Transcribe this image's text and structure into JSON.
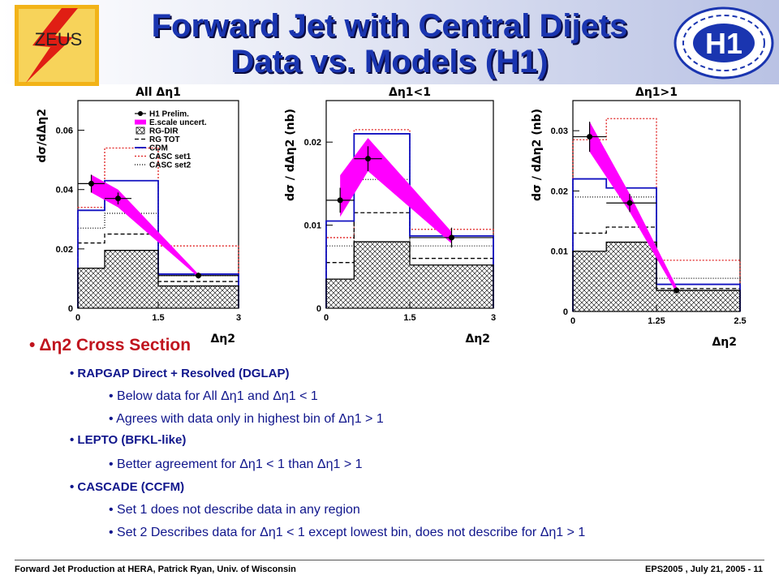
{
  "slide": {
    "title_line1": "Forward Jet with Central Dijets",
    "title_line2": "Data vs. Models (H1)",
    "logo_left": "ZEUS",
    "logo_right": "H1",
    "colors": {
      "title": "#1a35b0",
      "bullet_heading": "#c0141e",
      "bullet_text": "#10168c",
      "data_band": "#ff00ff",
      "model_blue": "#1010c0",
      "model_red": "#e02020"
    }
  },
  "chart_data": [
    {
      "type": "bar",
      "title": "All Δη1",
      "ylabel": "dσ/dΔη2",
      "xlabel": "Δη2",
      "xlim": [
        0,
        3
      ],
      "ylim": [
        0,
        0.07
      ],
      "xticks": [
        "0",
        "1.5",
        "3"
      ],
      "yticks": [
        "0",
        "0.02",
        "0.04",
        "0.06"
      ],
      "legend": [
        "H1 Prelim.",
        "E.scale uncert.",
        "RG-DIR",
        "RG TOT",
        "CDM",
        "CASC set1",
        "CASC set2"
      ],
      "legend_position": "top-right",
      "bins": [
        [
          0,
          0.5
        ],
        [
          0.5,
          1.0
        ],
        [
          1.0,
          1.5
        ],
        [
          1.5,
          3.0
        ]
      ],
      "series": [
        {
          "name": "H1 Prelim.",
          "x": [
            0.25,
            0.75,
            2.25
          ],
          "y": [
            0.042,
            0.037,
            0.011
          ],
          "err": [
            0.003,
            0.002,
            0.001
          ]
        },
        {
          "name": "E.scale uncert.",
          "x": [
            0.25,
            0.75,
            2.25
          ],
          "low": [
            0.039,
            0.034,
            0.0105
          ],
          "high": [
            0.045,
            0.04,
            0.0115
          ]
        },
        {
          "name": "RG-DIR",
          "values": [
            0.0135,
            0.0195,
            0.0195,
            0.0075
          ]
        },
        {
          "name": "RG TOT",
          "values": [
            0.022,
            0.025,
            0.025,
            0.009
          ]
        },
        {
          "name": "CDM",
          "values": [
            0.033,
            0.043,
            0.043,
            0.0115
          ]
        },
        {
          "name": "CASC set1",
          "values": [
            0.034,
            0.054,
            0.054,
            0.021
          ]
        },
        {
          "name": "CASC set2",
          "values": [
            0.027,
            0.032,
            0.032,
            0.011
          ]
        }
      ]
    },
    {
      "type": "bar",
      "title": "Δη1<1",
      "ylabel": "dσ / dΔη2 (nb)",
      "xlabel": "Δη2",
      "xlim": [
        0,
        3
      ],
      "ylim": [
        0,
        0.025
      ],
      "xticks": [
        "0",
        "1.5",
        "3"
      ],
      "yticks": [
        "0",
        "0.01",
        "0.02"
      ],
      "bins": [
        [
          0,
          0.5
        ],
        [
          0.5,
          1.0
        ],
        [
          1.0,
          1.5
        ],
        [
          1.5,
          3.0
        ]
      ],
      "series": [
        {
          "name": "H1 Prelim.",
          "x": [
            0.25,
            0.75,
            2.25
          ],
          "y": [
            0.013,
            0.018,
            0.0085
          ],
          "err": [
            0.0015,
            0.0015,
            0.0012
          ]
        },
        {
          "name": "E.scale uncert.",
          "x": [
            0.25,
            0.75,
            2.25
          ],
          "low": [
            0.011,
            0.0165,
            0.0078
          ],
          "high": [
            0.016,
            0.0205,
            0.0092
          ]
        },
        {
          "name": "RG-DIR",
          "values": [
            0.0035,
            0.008,
            0.008,
            0.0052
          ]
        },
        {
          "name": "RG TOT",
          "values": [
            0.0055,
            0.0115,
            0.0115,
            0.006
          ]
        },
        {
          "name": "CDM",
          "values": [
            0.0105,
            0.021,
            0.021,
            0.0087
          ]
        },
        {
          "name": "CASC set1",
          "values": [
            0.0085,
            0.0215,
            0.0215,
            0.0095
          ]
        },
        {
          "name": "CASC set2",
          "values": [
            0.0075,
            0.0155,
            0.0155,
            0.0075
          ]
        }
      ]
    },
    {
      "type": "bar",
      "title": "Δη1>1",
      "ylabel": "dσ / dΔη2 (nb)",
      "xlabel": "Δη2",
      "xlim": [
        0,
        2.5
      ],
      "ylim": [
        0,
        0.035
      ],
      "xticks": [
        "0",
        "1.25",
        "2.5"
      ],
      "yticks": [
        "0",
        "0.01",
        "0.02",
        "0.03"
      ],
      "bins": [
        [
          0,
          0.5
        ],
        [
          0.5,
          1.25
        ],
        [
          1.25,
          2.5
        ]
      ],
      "series": [
        {
          "name": "H1 Prelim.",
          "x": [
            0.25,
            0.85,
            1.55
          ],
          "y": [
            0.029,
            0.018,
            0.0035
          ],
          "err": [
            0.0025,
            0.0015,
            0.0005
          ]
        },
        {
          "name": "E.scale uncert.",
          "x": [
            0.25,
            0.85,
            1.55
          ],
          "low": [
            0.0265,
            0.0165,
            0.0031
          ],
          "high": [
            0.0315,
            0.0195,
            0.0041
          ]
        },
        {
          "name": "RG-DIR",
          "values": [
            0.01,
            0.0115,
            0.0035
          ]
        },
        {
          "name": "RG TOT",
          "values": [
            0.013,
            0.014,
            0.0038
          ]
        },
        {
          "name": "CDM",
          "values": [
            0.022,
            0.0205,
            0.0045
          ]
        },
        {
          "name": "CASC set1",
          "values": [
            0.0285,
            0.032,
            0.0085
          ]
        },
        {
          "name": "CASC set2",
          "values": [
            0.019,
            0.019,
            0.0055
          ]
        }
      ]
    }
  ],
  "bullets": {
    "heading": "Δη2 Cross Section",
    "items": [
      {
        "level": 1,
        "text": "RAPGAP Direct + Resolved (DGLAP)"
      },
      {
        "level": 2,
        "text": "Below data for All Δη1 and Δη1 < 1"
      },
      {
        "level": 2,
        "text": "Agrees with data only in highest bin of Δη1 > 1"
      },
      {
        "level": 1,
        "text": " LEPTO (BFKL-like)"
      },
      {
        "level": 2,
        "text": "Better agreement for Δη1 < 1 than Δη1 > 1"
      },
      {
        "level": 1,
        "text": "CASCADE (CCFM)"
      },
      {
        "level": 2,
        "text": "Set 1 does not describe data in any region"
      },
      {
        "level": 2,
        "text": "Set 2 Describes data for Δη1 < 1 except lowest bin, does not describe for Δη1 > 1"
      }
    ]
  },
  "footer": {
    "left": "Forward Jet Production at HERA, Patrick Ryan, Univ. of Wisconsin",
    "right": "EPS2005 , July 21, 2005 - 11"
  }
}
